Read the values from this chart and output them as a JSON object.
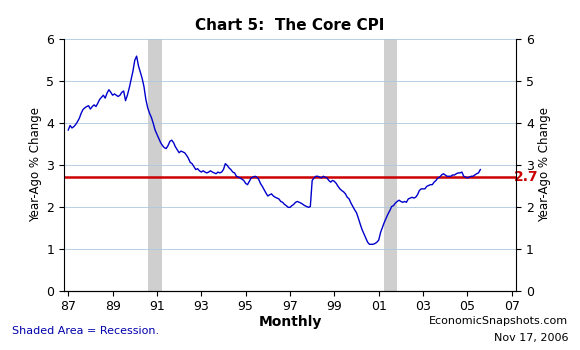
{
  "title": "Chart 5:  The Core CPI",
  "ylabel_left": "Year-Ago % Change",
  "ylabel_right": "Year-Ago % Change",
  "footnote_left": "Shaded Area = Recession.",
  "footnote_right_line1": "EconomicSnapshots.com",
  "footnote_right_line2": "Nov 17, 2006",
  "footnote_center": "Monthly",
  "ylim": [
    0,
    6
  ],
  "yticks": [
    0,
    1,
    2,
    3,
    4,
    5,
    6
  ],
  "reference_line": 2.7,
  "reference_label": "2.7",
  "line_color": "#0000cc",
  "ref_line_color": "#cc0000",
  "recession_color": "#c0c0c0",
  "recession_alpha": 0.75,
  "recessions": [
    {
      "start": 1990.583,
      "end": 1991.25
    },
    {
      "start": 2001.25,
      "end": 2001.833
    }
  ],
  "x_start_year": 1987.0,
  "x_end_year": 2007.0,
  "xtick_values": [
    1987,
    1989,
    1991,
    1993,
    1995,
    1997,
    1999,
    2001,
    2003,
    2005,
    2007
  ],
  "xtick_labels": [
    "87",
    "89",
    "91",
    "93",
    "95",
    "97",
    "99",
    "01",
    "03",
    "05",
    "07"
  ],
  "cpi_data": [
    3.82,
    3.93,
    3.87,
    3.9,
    3.95,
    4.02,
    4.1,
    4.22,
    4.31,
    4.35,
    4.38,
    4.4,
    4.32,
    4.38,
    4.42,
    4.38,
    4.46,
    4.55,
    4.6,
    4.65,
    4.58,
    4.7,
    4.78,
    4.72,
    4.65,
    4.68,
    4.65,
    4.62,
    4.65,
    4.72,
    4.75,
    4.52,
    4.65,
    4.82,
    5.02,
    5.22,
    5.48,
    5.58,
    5.35,
    5.2,
    5.05,
    4.85,
    4.55,
    4.35,
    4.22,
    4.12,
    3.98,
    3.82,
    3.72,
    3.62,
    3.52,
    3.45,
    3.4,
    3.38,
    3.45,
    3.55,
    3.58,
    3.52,
    3.42,
    3.35,
    3.28,
    3.32,
    3.3,
    3.28,
    3.22,
    3.15,
    3.05,
    3.02,
    2.95,
    2.88,
    2.9,
    2.85,
    2.82,
    2.85,
    2.82,
    2.8,
    2.82,
    2.85,
    2.82,
    2.8,
    2.78,
    2.82,
    2.8,
    2.82,
    2.88,
    3.02,
    2.98,
    2.92,
    2.88,
    2.82,
    2.8,
    2.72,
    2.7,
    2.68,
    2.65,
    2.62,
    2.55,
    2.52,
    2.6,
    2.68,
    2.7,
    2.72,
    2.7,
    2.65,
    2.55,
    2.48,
    2.4,
    2.32,
    2.25,
    2.28,
    2.3,
    2.25,
    2.22,
    2.2,
    2.18,
    2.12,
    2.1,
    2.05,
    2.02,
    1.98,
    1.98,
    2.02,
    2.05,
    2.1,
    2.12,
    2.1,
    2.08,
    2.05,
    2.02,
    2.0,
    1.98,
    2.0,
    2.62,
    2.68,
    2.72,
    2.72,
    2.7,
    2.68,
    2.72,
    2.7,
    2.68,
    2.62,
    2.58,
    2.62,
    2.6,
    2.55,
    2.48,
    2.42,
    2.38,
    2.35,
    2.3,
    2.22,
    2.18,
    2.08,
    2.0,
    1.92,
    1.85,
    1.72,
    1.58,
    1.45,
    1.35,
    1.25,
    1.15,
    1.1,
    1.1,
    1.1,
    1.12,
    1.15,
    1.2,
    1.38,
    1.5,
    1.62,
    1.72,
    1.82,
    1.9,
    2.0,
    2.02,
    2.08,
    2.12,
    2.15,
    2.12,
    2.1,
    2.12,
    2.1,
    2.18,
    2.2,
    2.22,
    2.2,
    2.22,
    2.28,
    2.38,
    2.42,
    2.42,
    2.42,
    2.48,
    2.5,
    2.52,
    2.52,
    2.58,
    2.62,
    2.68,
    2.7,
    2.75,
    2.78,
    2.75,
    2.72,
    2.72,
    2.72,
    2.75,
    2.75,
    2.78,
    2.8,
    2.8,
    2.82,
    2.72,
    2.7,
    2.68,
    2.7,
    2.72,
    2.72,
    2.75,
    2.78,
    2.8,
    2.88
  ]
}
